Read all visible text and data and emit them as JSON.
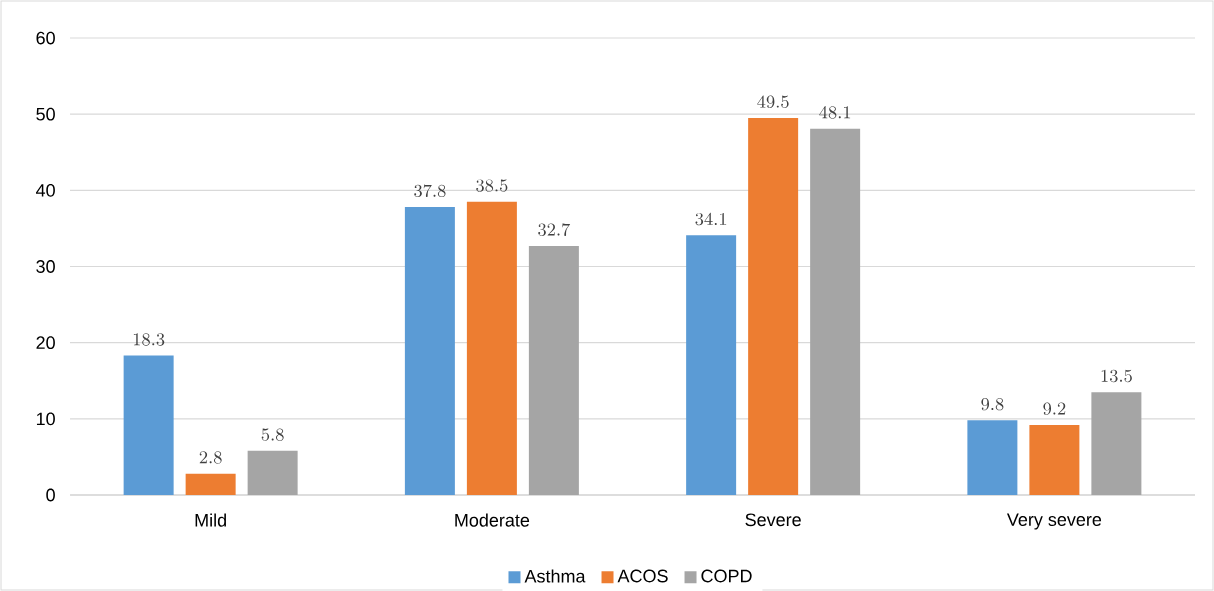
{
  "chart_data": {
    "type": "bar",
    "categories": [
      "Mild",
      "Moderate",
      "Severe",
      "Very severe"
    ],
    "series": [
      {
        "name": "Asthma",
        "color": "#5b9bd5",
        "values": [
          18.3,
          37.8,
          34.1,
          9.8
        ]
      },
      {
        "name": "ACOS",
        "color": "#ed7d31",
        "values": [
          2.8,
          38.5,
          49.5,
          9.2
        ]
      },
      {
        "name": "COPD",
        "color": "#a5a5a5",
        "values": [
          5.8,
          32.7,
          48.1,
          13.5
        ]
      }
    ],
    "ylim": [
      0,
      60
    ],
    "yticks": [
      0,
      10,
      20,
      30,
      40,
      50,
      60
    ],
    "grid": "y",
    "legend": "bottom",
    "data_labels": true
  }
}
